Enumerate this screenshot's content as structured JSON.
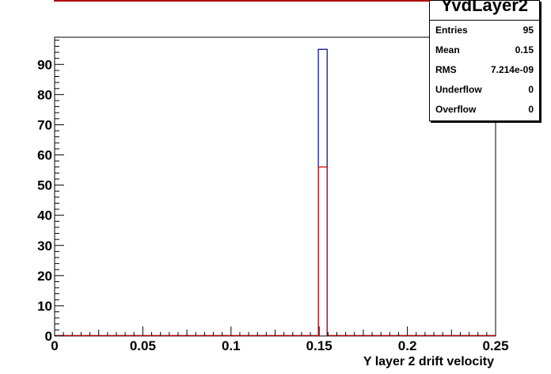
{
  "chart_data": {
    "type": "bar",
    "title": "",
    "xlabel": "Y layer 2 drift velocity",
    "ylabel": "",
    "xlim": [
      0,
      0.25
    ],
    "ylim": [
      0,
      99
    ],
    "x_ticks": [
      "0",
      "0.05",
      "0.1",
      "0.15",
      "0.2",
      "0.25"
    ],
    "y_ticks": [
      "0",
      "10",
      "20",
      "30",
      "40",
      "50",
      "60",
      "70",
      "80",
      "90"
    ],
    "grid": false,
    "series": [
      {
        "color": "#00008b",
        "bins": [
          {
            "x0": 0.1495,
            "x1": 0.1545,
            "value": 95
          }
        ]
      },
      {
        "color": "#cc0000",
        "bins": [
          {
            "x0": 0.1495,
            "x1": 0.1545,
            "value": 56
          }
        ]
      }
    ]
  },
  "stats": {
    "title": "YvdLayer2",
    "rows": [
      {
        "label": "Entries",
        "value": "95"
      },
      {
        "label": "Mean",
        "value": "0.15"
      },
      {
        "label": "RMS",
        "value": "7.214e-09"
      },
      {
        "label": "Underflow",
        "value": "0"
      },
      {
        "label": "Overflow",
        "value": "0"
      }
    ]
  }
}
